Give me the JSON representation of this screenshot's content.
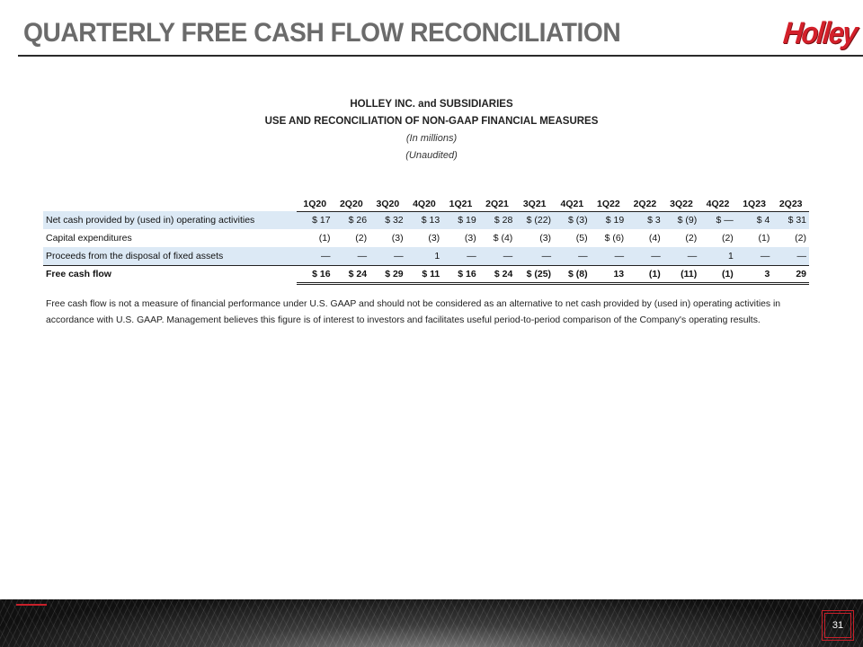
{
  "slide": {
    "title": "QUARTERLY FREE CASH FLOW RECONCILIATION",
    "logo_text": "Holley",
    "page_number": "31",
    "accent_color": "#d3202a"
  },
  "report": {
    "company": "HOLLEY INC. and SUBSIDIARIES",
    "subtitle": "USE AND RECONCILIATION OF NON-GAAP FINANCIAL MEASURES",
    "units": "(In millions)",
    "audit_status": "(Unaudited)"
  },
  "table": {
    "quarters": [
      "1Q20",
      "2Q20",
      "3Q20",
      "4Q20",
      "1Q21",
      "2Q21",
      "3Q21",
      "4Q21",
      "1Q22",
      "2Q22",
      "3Q22",
      "4Q22",
      "1Q23",
      "2Q23"
    ],
    "rows": [
      {
        "label": "Net cash provided by (used in) operating activities",
        "values": [
          "$ 17",
          "$ 26",
          "$ 32",
          "$ 13",
          "$ 19",
          "$ 28",
          "$ (22)",
          "$ (3)",
          "$ 19",
          "$ 3",
          "$ (9)",
          "$    —",
          "$ 4",
          "$ 31"
        ]
      },
      {
        "label": "Capital expenditures",
        "values": [
          "(1)",
          "(2)",
          "(3)",
          "(3)",
          "(3)",
          "$ (4)",
          "(3)",
          "(5)",
          "$ (6)",
          "(4)",
          "(2)",
          "(2)",
          "(1)",
          "(2)"
        ]
      },
      {
        "label": "Proceeds from the disposal of fixed assets",
        "values": [
          "—",
          "—",
          "—",
          "1",
          "—",
          "—",
          "—",
          "—",
          "—",
          "—",
          "—",
          "1",
          "—",
          "—"
        ]
      },
      {
        "label": "Free cash flow",
        "values": [
          "$ 16",
          "$ 24",
          "$ 29",
          "$ 11",
          "$ 16",
          "$ 24",
          "$ (25)",
          "$ (8)",
          "13",
          "(1)",
          "(11)",
          "(1)",
          "3",
          "29"
        ]
      }
    ]
  },
  "footnote": "Free cash flow is not a measure of financial performance under U.S. GAAP and should not be considered as an alternative to net cash provided by (used in) operating activities in accordance with U.S. GAAP. Management believes this figure is of interest to investors and facilitates useful period-to-period comparison of the Company's operating results."
}
